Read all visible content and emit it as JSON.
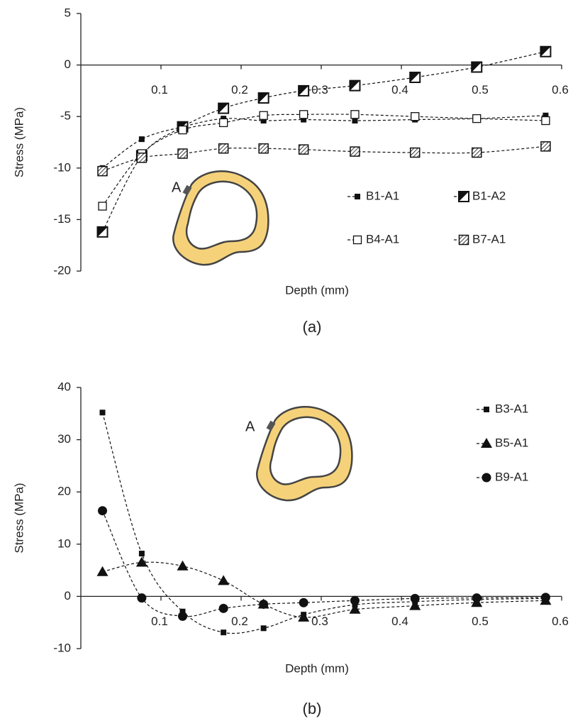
{
  "chart_data": [
    {
      "type": "line",
      "label": "(a)",
      "xlabel": "Depth  (mm)",
      "ylabel": "Stress  (MPa)",
      "inset_label": "A",
      "x": [
        0.027,
        0.076,
        0.127,
        0.178,
        0.228,
        0.278,
        0.342,
        0.417,
        0.494,
        0.58
      ],
      "xlim": [
        0,
        0.6
      ],
      "xticks": [
        0.1,
        0.2,
        0.3,
        0.4,
        0.5,
        0.6
      ],
      "ylim": [
        -20,
        5
      ],
      "yticks": [
        5,
        0,
        -5,
        -10,
        -15,
        -20
      ],
      "series": [
        {
          "name": "B1-A1",
          "color": "#111111",
          "marker": "square",
          "values": [
            -10,
            -7.2,
            -6,
            -5.2,
            -5.4,
            -5.3,
            -5.4,
            -5.3,
            -5.2,
            -4.9
          ]
        },
        {
          "name": "B1-A2",
          "color": "#111111",
          "marker": "half-square",
          "values": [
            -16.2,
            -8.8,
            -6,
            -4.2,
            -3.2,
            -2.5,
            -2,
            -1.2,
            -0.2,
            1.3
          ]
        },
        {
          "name": "B4-A1",
          "color": "#111111",
          "marker": "open-square",
          "values": [
            -13.7,
            -8.6,
            -6.3,
            -5.6,
            -4.9,
            -4.8,
            -4.8,
            -5,
            -5.2,
            -5.4
          ]
        },
        {
          "name": "B7-A1",
          "color": "#111111",
          "marker": "hatched-square",
          "values": [
            -10.3,
            -9,
            -8.6,
            -8.1,
            -8.1,
            -8.2,
            -8.4,
            -8.5,
            -8.5,
            -7.9
          ]
        }
      ]
    },
    {
      "type": "line",
      "label": "(b)",
      "xlabel": "Depth  (mm)",
      "ylabel": "Stress  (MPa)",
      "inset_label": "A",
      "x": [
        0.027,
        0.076,
        0.127,
        0.178,
        0.228,
        0.278,
        0.342,
        0.417,
        0.494,
        0.58
      ],
      "xlim": [
        0,
        0.6
      ],
      "xticks": [
        0.1,
        0.2,
        0.3,
        0.4,
        0.5,
        0.6
      ],
      "ylim": [
        -10,
        40
      ],
      "yticks": [
        40,
        30,
        20,
        10,
        0,
        -10
      ],
      "series": [
        {
          "name": "B3-A1",
          "color": "#111111",
          "marker": "square",
          "values": [
            35.2,
            8.2,
            -2.9,
            -6.9,
            -6.1,
            -3.5,
            -1.6,
            -1,
            -0.6,
            -0.4
          ]
        },
        {
          "name": "B5-A1",
          "color": "#111111",
          "marker": "triangle",
          "values": [
            4.7,
            6.5,
            5.8,
            3,
            -1.5,
            -4,
            -2.5,
            -1.8,
            -1.2,
            -0.8
          ]
        },
        {
          "name": "B9-A1",
          "color": "#111111",
          "marker": "circle",
          "values": [
            16.4,
            -0.3,
            -3.8,
            -2.3,
            -1.5,
            -1.2,
            -0.8,
            -0.4,
            -0.3,
            -0.2
          ]
        }
      ]
    }
  ]
}
